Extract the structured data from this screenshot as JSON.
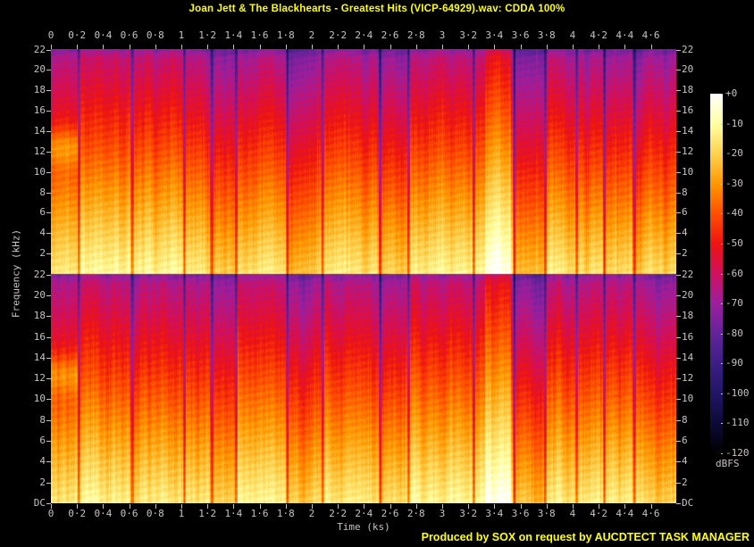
{
  "title": "Joan Jett & The Blackhearts - Greatest Hits (VICP-64929).wav: CDDA 100%",
  "footer": "Produced by SOX on request by AUCDTECT TASK MANAGER",
  "colors": {
    "background": "#000000",
    "title": "#ffff00",
    "footer": "#ffff00",
    "axis_text": "#c9c2c2"
  },
  "chart_data": {
    "type": "heatmap",
    "subtype": "audio-spectrogram",
    "channels": 2,
    "x_axis": {
      "label": "Time (ks)",
      "tick_labels": [
        "0",
        "0·2",
        "0·4",
        "0·6",
        "0·8",
        "1",
        "1·2",
        "1·4",
        "1·6",
        "1·8",
        "2",
        "2·2",
        "2·4",
        "2·6",
        "2·8",
        "3",
        "3·2",
        "3·4",
        "3·6",
        "3·8",
        "4",
        "4·2",
        "4·4",
        "4·6"
      ],
      "tick_values": [
        0,
        0.2,
        0.4,
        0.6,
        0.8,
        1,
        1.2,
        1.4,
        1.6,
        1.8,
        2,
        2.2,
        2.4,
        2.6,
        2.8,
        3,
        3.2,
        3.4,
        3.6,
        3.8,
        4,
        4.2,
        4.4,
        4.6
      ],
      "range_ks": [
        0,
        4.795
      ]
    },
    "y_axis": {
      "label": "Frequency (kHz)",
      "tick_labels_per_channel": [
        "22",
        "20",
        "18",
        "16",
        "14",
        "12",
        "10",
        "8",
        "6",
        "4",
        "2"
      ],
      "tick_values_per_channel": [
        22,
        20,
        18,
        16,
        14,
        12,
        10,
        8,
        6,
        4,
        2
      ],
      "dc_label": "DC",
      "range_khz": [
        0,
        22.05
      ]
    },
    "legend": {
      "label": "dBFS",
      "tick_labels": [
        "+0",
        "-10",
        "-20",
        "-30",
        "-40",
        "-50",
        "-60",
        "-70",
        "-80",
        "-90",
        "-100",
        "-110",
        "-120"
      ],
      "tick_values": [
        0,
        -10,
        -20,
        -30,
        -40,
        -50,
        -60,
        -70,
        -80,
        -90,
        -100,
        -110,
        -120
      ],
      "stops": [
        [
          0,
          "#ffffff"
        ],
        [
          -10,
          "#ffffa2"
        ],
        [
          -20,
          "#ffd24f"
        ],
        [
          -30,
          "#ff9800"
        ],
        [
          -40,
          "#ff4f00"
        ],
        [
          -50,
          "#ee1410"
        ],
        [
          -60,
          "#d00f5e"
        ],
        [
          -70,
          "#9c1f9e"
        ],
        [
          -80,
          "#63239a"
        ],
        [
          -90,
          "#3c1e85"
        ],
        [
          -100,
          "#221566"
        ],
        [
          -110,
          "#0d0a38"
        ],
        [
          -120,
          "#000000"
        ]
      ]
    },
    "track_boundaries_ks": [
      0.21,
      0.62,
      1.02,
      1.23,
      1.42,
      1.81,
      2.08,
      2.52,
      2.74,
      3.24,
      3.55,
      3.79,
      4.03,
      4.24,
      4.47
    ],
    "track_loudness_db": [
      2,
      4,
      3,
      2,
      -4,
      3,
      -5,
      2,
      -3,
      4,
      5,
      -5,
      2,
      3,
      0,
      -3
    ],
    "profile": {
      "base_db_at_dc": -16,
      "db_per_khz": -2.45,
      "column_variation_db": 8,
      "top_rolloff_khz": 21.2
    },
    "features": [
      {
        "type": "band-boost",
        "t_range_ks": [
          0,
          0.21
        ],
        "center_khz": 12.5,
        "sigma_khz": 1.3,
        "boost_db": 14
      },
      {
        "type": "loud-section",
        "t_range_ks": [
          3.33,
          3.53
        ],
        "boost_db": 11
      }
    ]
  }
}
